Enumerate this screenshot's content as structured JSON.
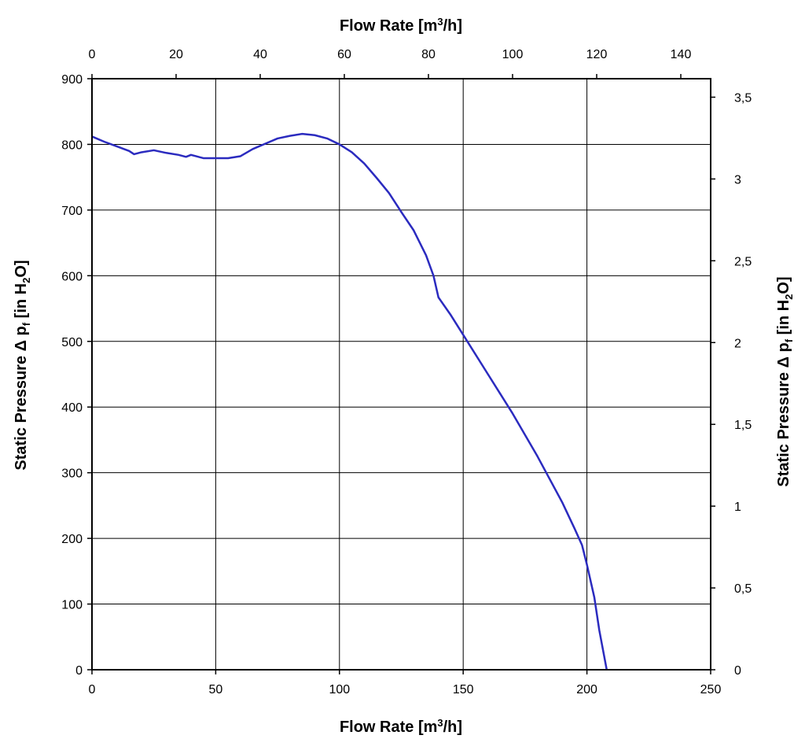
{
  "chart_data": {
    "type": "line",
    "grid": true,
    "series_color": "#2b2bbf",
    "axes": {
      "x_bottom": {
        "label_main": "Flow Rate [m",
        "label_sup": "3",
        "label_tail": "/h]",
        "min": 0,
        "max": 250,
        "ticks": [
          0,
          50,
          100,
          150,
          200,
          250
        ]
      },
      "x_top": {
        "label_main": "Flow Rate [m",
        "label_sup": "3",
        "label_tail": "/h]",
        "min": 0,
        "max": 147.1,
        "ticks": [
          0,
          20,
          40,
          60,
          80,
          100,
          120,
          140
        ]
      },
      "y_left": {
        "label_main": "Static Pressure Δ p",
        "label_sub1": "f",
        "label_mid": " [in H",
        "label_sub2": "2",
        "label_tail": "O]",
        "min": 0,
        "max": 900,
        "ticks": [
          0,
          100,
          200,
          300,
          400,
          500,
          600,
          700,
          800,
          900
        ]
      },
      "y_right": {
        "label_main": "Static Pressure Δ p",
        "label_sub1": "f",
        "label_mid": " [in H",
        "label_sub2": "2",
        "label_tail": "O]",
        "min": 0,
        "max": 3.613,
        "ticks": [
          "0",
          "0,5",
          "1",
          "1,5",
          "2",
          "2,5",
          "3",
          "3,5"
        ],
        "tick_values": [
          0,
          0.5,
          1,
          1.5,
          2,
          2.5,
          3,
          3.5
        ]
      }
    },
    "series": [
      {
        "x": [
          0,
          5,
          10,
          15,
          17,
          20,
          25,
          30,
          35,
          38,
          40,
          42,
          45,
          50,
          55,
          60,
          65,
          70,
          75,
          80,
          85,
          90,
          95,
          100,
          105,
          110,
          115,
          120,
          125,
          130,
          135,
          138,
          140,
          145,
          150,
          160,
          170,
          180,
          190,
          195,
          198,
          200,
          203,
          205,
          208
        ],
        "y": [
          812,
          804,
          797,
          790,
          785,
          788,
          791,
          787,
          784,
          781,
          784,
          782,
          779,
          779,
          779,
          782,
          793,
          801,
          809,
          813,
          816,
          814,
          809,
          800,
          788,
          771,
          749,
          726,
          697,
          669,
          631,
          600,
          567,
          540,
          510,
          450,
          390,
          325,
          255,
          215,
          190,
          160,
          110,
          60,
          0
        ]
      }
    ]
  }
}
